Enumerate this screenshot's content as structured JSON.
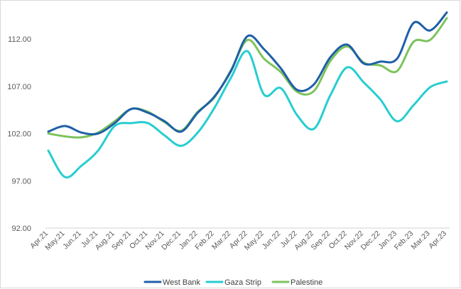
{
  "chart_data": {
    "type": "line",
    "title": "",
    "xlabel": "",
    "ylabel": "",
    "ylim": [
      92,
      115
    ],
    "yticks": [
      "92.00",
      "97.00",
      "102.00",
      "107.00",
      "112.00"
    ],
    "ytick_values": [
      92,
      97,
      102,
      107,
      112
    ],
    "grid": "none",
    "legend_position": "bottom",
    "categories": [
      "Apr.21",
      "May.21",
      "Jun.21",
      "Jul.21",
      "Aug.21",
      "Sep.21",
      "Oct.21",
      "Nov.21",
      "Dec.21",
      "Jan.22",
      "Feb.22",
      "Mar.22",
      "Apr.22",
      "May.22",
      "Jun.22",
      "Jul.22",
      "Aug.22",
      "Sep.22",
      "Oct.22",
      "Nov.22",
      "Dec.22",
      "Jan.23",
      "Feb.23",
      "Mar.23",
      "Apr.23"
    ],
    "series": [
      {
        "name": "West Bank",
        "color": "#1f5fa8",
        "values": [
          102.2,
          102.8,
          102.1,
          102.0,
          103.1,
          104.6,
          104.2,
          103.3,
          102.2,
          104.2,
          105.9,
          108.6,
          112.3,
          110.9,
          108.9,
          106.6,
          107.2,
          110.1,
          111.4,
          109.4,
          109.6,
          109.9,
          113.7,
          112.9,
          114.8
        ]
      },
      {
        "name": "Gaza Strip",
        "color": "#27cdd0",
        "values": [
          100.2,
          97.4,
          98.6,
          100.2,
          102.8,
          103.1,
          103.1,
          101.8,
          100.7,
          102.1,
          104.7,
          107.9,
          110.7,
          106.1,
          106.8,
          103.9,
          102.5,
          106.1,
          109.0,
          107.4,
          105.6,
          103.3,
          105.0,
          106.9,
          107.5
        ]
      },
      {
        "name": "Palestine",
        "color": "#7cc35b",
        "values": [
          102.0,
          101.7,
          101.6,
          102.1,
          103.3,
          104.6,
          104.3,
          103.2,
          102.3,
          104.3,
          105.8,
          108.7,
          111.9,
          109.9,
          108.5,
          106.4,
          106.5,
          109.7,
          111.2,
          109.5,
          109.2,
          108.6,
          111.7,
          111.9,
          114.2
        ]
      }
    ]
  }
}
